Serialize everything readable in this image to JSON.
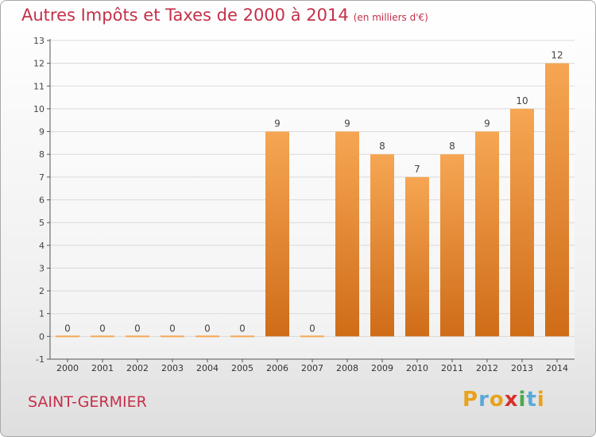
{
  "header": {
    "title": "Autres Impôts et Taxes de 2000 à 2014",
    "subtitle": "(en milliers d'€)"
  },
  "footer": {
    "city": "SAINT-GERMIER",
    "logo": [
      "P",
      "r",
      "o",
      "x",
      "i",
      "t",
      "i"
    ],
    "logo_colors": [
      "#e8a21b",
      "#5aa8d8",
      "#e8a21b",
      "#d6312b",
      "#4aa84a",
      "#5aa8d8",
      "#e8a21b"
    ]
  },
  "colors": {
    "title": "#c4304a",
    "bar_light": "#f6a653",
    "bar_dark": "#cf6c18",
    "axis": "#555555",
    "grid": "#d9d9d9"
  },
  "chart_data": {
    "type": "bar",
    "title": "Autres Impôts et Taxes de 2000 à 2014",
    "subtitle": "(en milliers d'€)",
    "categories": [
      "2000",
      "2001",
      "2002",
      "2003",
      "2004",
      "2005",
      "2006",
      "2007",
      "2008",
      "2009",
      "2010",
      "2011",
      "2012",
      "2013",
      "2014"
    ],
    "values": [
      0,
      0,
      0,
      0,
      0,
      0,
      9,
      0,
      9,
      8,
      7,
      8,
      9,
      10,
      12
    ],
    "data_labels": [
      "0",
      "0",
      "0",
      "0",
      "0",
      "0",
      "9",
      "0",
      "9",
      "8",
      "7",
      "8",
      "9",
      "10",
      "12"
    ],
    "y_ticks": [
      "-1",
      "0",
      "1",
      "2",
      "3",
      "4",
      "5",
      "6",
      "7",
      "8",
      "9",
      "10",
      "11",
      "12",
      "13"
    ],
    "ylim": [
      -1,
      13
    ],
    "xlabel": "",
    "ylabel": "",
    "grid": "horizontal",
    "legend": "none"
  }
}
